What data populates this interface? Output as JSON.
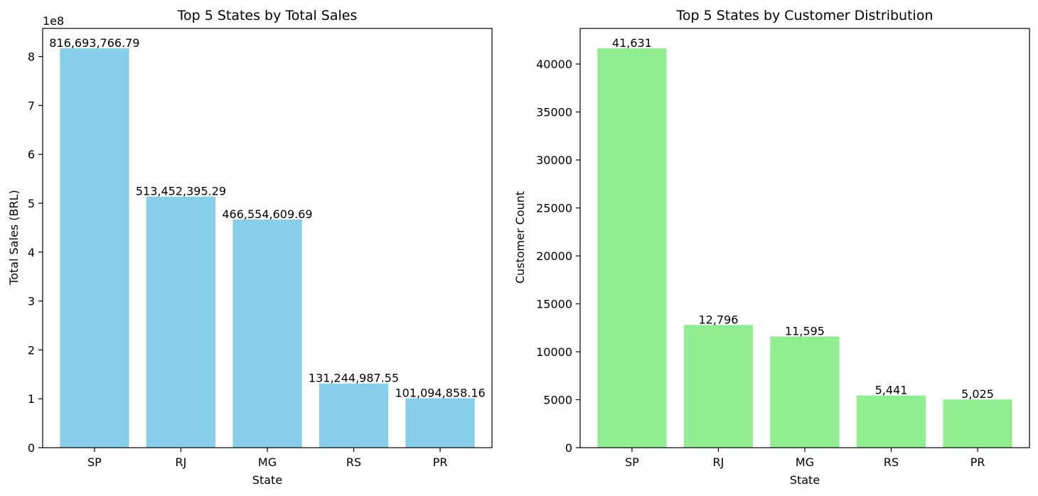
{
  "chart_data": [
    {
      "type": "bar",
      "title": "Top 5 States by Total Sales",
      "xlabel": "State",
      "ylabel": "Total Sales (BRL)",
      "axis_offset_label": "1e8",
      "categories": [
        "SP",
        "RJ",
        "MG",
        "RS",
        "PR"
      ],
      "values": [
        816693766.79,
        513452395.29,
        466554609.69,
        131244987.55,
        101094858.16
      ],
      "value_labels": [
        "816,693,766.79",
        "513,452,395.29",
        "466,554,609.69",
        "131,244,987.55",
        "101,094,858.16"
      ],
      "yticks": [
        0,
        100000000,
        200000000,
        300000000,
        400000000,
        500000000,
        600000000,
        700000000,
        800000000
      ],
      "ytick_labels": [
        "0",
        "1",
        "2",
        "3",
        "4",
        "5",
        "6",
        "7",
        "8"
      ],
      "ylim": [
        0,
        857528455.13
      ],
      "color": "#87CEEB",
      "grid": false
    },
    {
      "type": "bar",
      "title": "Top 5 States by Customer Distribution",
      "xlabel": "State",
      "ylabel": "Customer Count",
      "categories": [
        "SP",
        "RJ",
        "MG",
        "RS",
        "PR"
      ],
      "values": [
        41631,
        12796,
        11595,
        5441,
        5025
      ],
      "value_labels": [
        "41,631",
        "12,796",
        "11,595",
        "5,441",
        "5,025"
      ],
      "yticks": [
        0,
        5000,
        10000,
        15000,
        20000,
        25000,
        30000,
        35000,
        40000
      ],
      "ytick_labels": [
        "0",
        "5000",
        "10000",
        "15000",
        "20000",
        "25000",
        "30000",
        "35000",
        "40000"
      ],
      "ylim": [
        0,
        43712.55
      ],
      "color": "#90EE90",
      "grid": false
    }
  ]
}
